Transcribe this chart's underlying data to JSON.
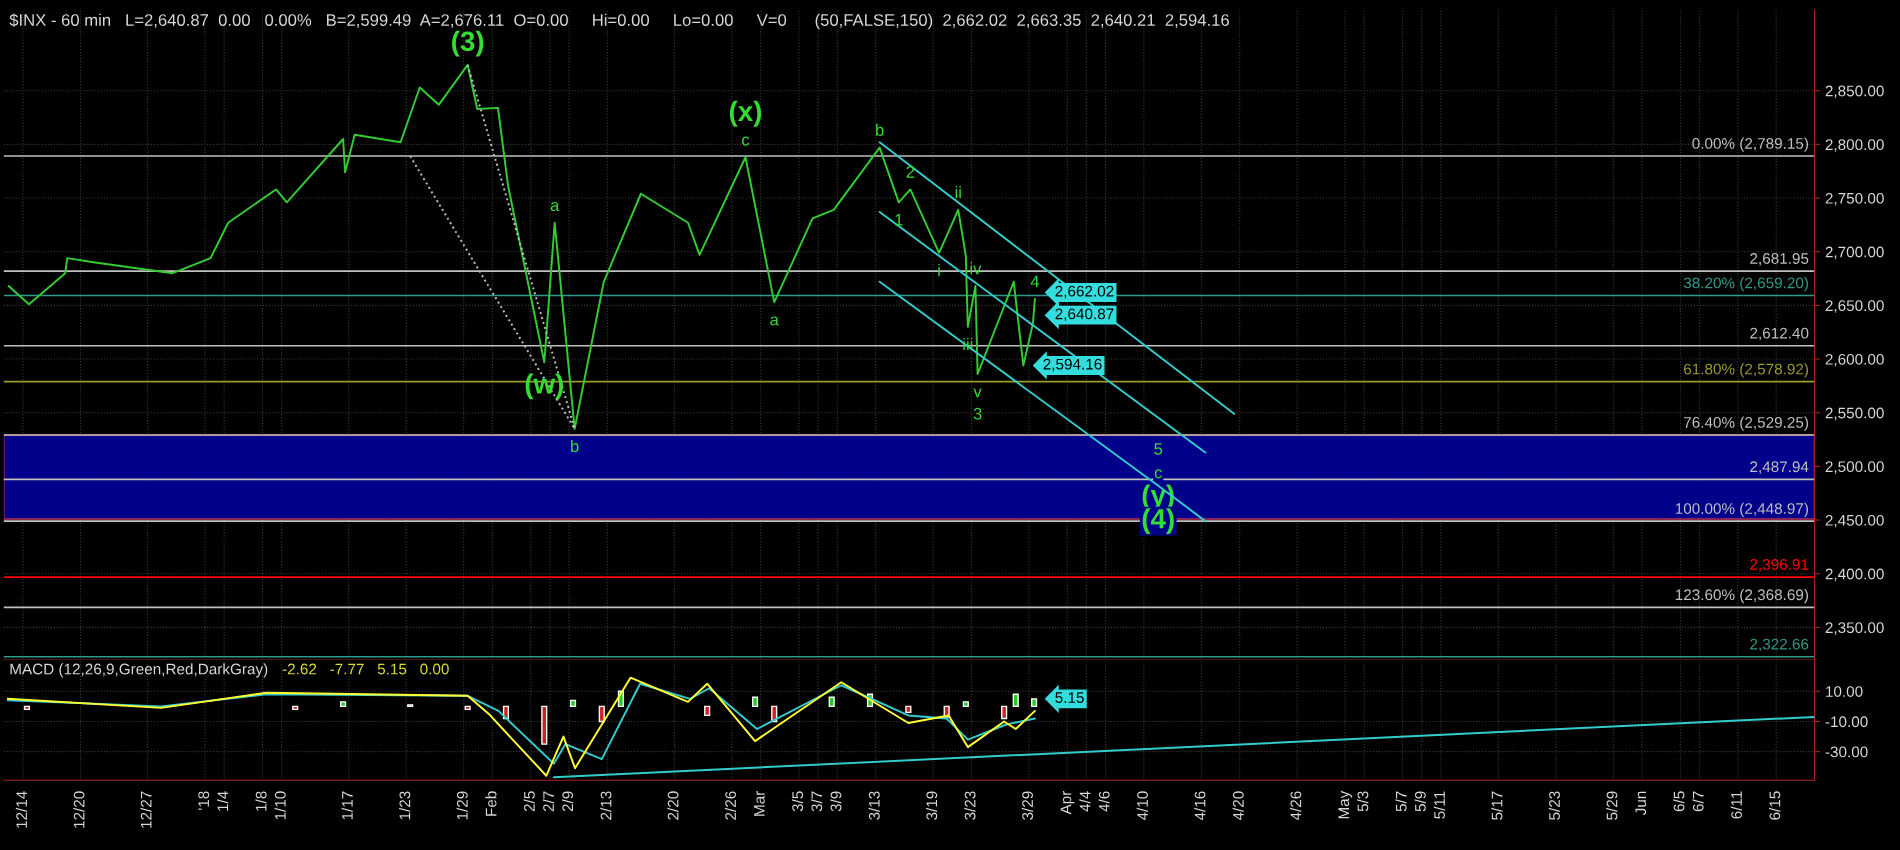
{
  "chart_data": [
    {
      "type": "line",
      "ylim": [
        2320,
        2925
      ],
      "xlim": [
        "2017-12-12",
        "2018-06-19"
      ],
      "tick_labels": "y",
      "grid": true,
      "legend": false,
      "yticks": [
        {
          "value": 2350,
          "label": "2,350.00"
        },
        {
          "value": 2400,
          "label": "2,400.00"
        },
        {
          "value": 2450,
          "label": "2,450.00"
        },
        {
          "value": 2500,
          "label": "2,500.00"
        },
        {
          "value": 2550,
          "label": "2,550.00"
        },
        {
          "value": 2600,
          "label": "2,600.00"
        },
        {
          "value": 2650,
          "label": "2,650.00"
        },
        {
          "value": 2700,
          "label": "2,700.00"
        },
        {
          "value": 2750,
          "label": "2,750.00"
        },
        {
          "value": 2800,
          "label": "2,800.00"
        },
        {
          "value": 2850,
          "label": "2,850.00"
        }
      ],
      "xticks": [
        {
          "value": "2017-12-14",
          "label": null
        },
        {
          "value": "2017-12-20",
          "label": null
        },
        {
          "value": "2017-12-27",
          "label": null
        },
        {
          "value": "2018-01-02",
          "label": null
        },
        {
          "value": "2018-01-04",
          "label": null
        },
        {
          "value": "2018-01-08",
          "label": null
        },
        {
          "value": "2018-01-10",
          "label": null
        },
        {
          "value": "2018-01-17",
          "label": null
        },
        {
          "value": "2018-01-23",
          "label": null
        },
        {
          "value": "2018-01-29",
          "label": null
        },
        {
          "value": "2018-02-01",
          "label": null
        },
        {
          "value": "2018-02-05",
          "label": null
        },
        {
          "value": "2018-02-07",
          "label": null
        },
        {
          "value": "2018-02-09",
          "label": null
        },
        {
          "value": "2018-02-13",
          "label": null
        },
        {
          "value": "2018-02-20",
          "label": null
        },
        {
          "value": "2018-02-26",
          "label": null
        },
        {
          "value": "2018-03-01",
          "label": null
        },
        {
          "value": "2018-03-05",
          "label": null
        },
        {
          "value": "2018-03-07",
          "label": null
        },
        {
          "value": "2018-03-09",
          "label": null
        },
        {
          "value": "2018-03-13",
          "label": null
        },
        {
          "value": "2018-03-19",
          "label": null
        },
        {
          "value": "2018-03-23",
          "label": null
        },
        {
          "value": "2018-03-29",
          "label": null
        },
        {
          "value": "2018-04-02",
          "label": null
        },
        {
          "value": "2018-04-04",
          "label": null
        },
        {
          "value": "2018-04-06",
          "label": null
        },
        {
          "value": "2018-04-10",
          "label": null
        },
        {
          "value": "2018-04-16",
          "label": null
        },
        {
          "value": "2018-04-20",
          "label": null
        },
        {
          "value": "2018-04-26",
          "label": null
        },
        {
          "value": "2018-05-01",
          "label": null
        },
        {
          "value": "2018-05-03",
          "label": null
        },
        {
          "value": "2018-05-07",
          "label": null
        },
        {
          "value": "2018-05-09",
          "label": null
        },
        {
          "value": "2018-05-11",
          "label": null
        },
        {
          "value": "2018-05-17",
          "label": null
        },
        {
          "value": "2018-05-23",
          "label": null
        },
        {
          "value": "2018-05-29",
          "label": null
        },
        {
          "value": "2018-06-01",
          "label": null
        },
        {
          "value": "2018-06-05",
          "label": null
        },
        {
          "value": "2018-06-07",
          "label": null
        },
        {
          "value": "2018-06-11",
          "label": null
        },
        {
          "value": "2018-06-15",
          "label": null
        }
      ],
      "series": [
        {
          "color": "#33cc33",
          "line_style": "solid",
          "x": [
            "2017-12-12T12:00",
            "2017-12-14T15:00",
            "2017-12-18T10:00",
            "2017-12-18T15:00",
            "2017-12-21T13:00",
            "2017-12-29T15:00",
            "2018-01-02T14:00",
            "2018-01-04T10:00",
            "2018-01-09T10:00",
            "2018-01-10T13:00",
            "2018-01-16T10:00",
            "2018-01-16T15:00",
            "2018-01-17T15:00",
            "2018-01-22T10:00",
            "2018-01-24T10:00",
            "2018-01-26T10:00",
            "2018-01-29T10:00",
            "2018-01-30T10:00",
            "2018-02-01T14:00",
            "2018-02-02T15:00",
            "2018-02-06T10:00",
            "2018-02-07T12:00",
            "2018-02-09T14:00",
            "2018-02-12T15:00",
            "2018-02-16T12:00",
            "2018-02-21T10:00",
            "2018-02-22T15:00",
            "2018-02-27T10:00",
            "2018-03-02T10:00",
            "2018-03-06T10:00",
            "2018-03-08T15:00",
            "2018-03-13T10:00",
            "2018-03-15T10:00",
            "2018-03-16T15:00",
            "2018-03-19T15:00",
            "2018-03-21T15:00",
            "2018-03-22T10:00",
            "2018-03-22T15:00",
            "2018-03-23T10:00",
            "2018-03-23T15:30",
            "2018-03-27T10:00",
            "2018-03-28T10:00",
            "2018-03-29T10:00",
            "2018-03-29T15:00"
          ],
          "values": [
            2668,
            2651,
            2680,
            2694,
            2690,
            2680,
            2694,
            2727,
            2758,
            2746,
            2805,
            2774,
            2809,
            2802,
            2853,
            2837,
            2874,
            2833,
            2834,
            2762,
            2597,
            2727,
            2535,
            2672,
            2754,
            2727,
            2697,
            2788,
            2653,
            2731,
            2739,
            2797,
            2746,
            2758,
            2699,
            2739,
            2696,
            2630,
            2668,
            2586,
            2672,
            2594,
            2633,
            2656
          ]
        },
        {
          "color": "#c0c0c0",
          "line_style": "dotted",
          "x": [
            "2018-01-29T10:00",
            "2018-02-09T14:00"
          ],
          "values": [
            2874,
            2535
          ]
        },
        {
          "color": "#c0c0c0",
          "line_style": "dotted",
          "x": [
            "2018-01-23T10:00",
            "2018-02-09T14:00"
          ],
          "values": [
            2789,
            2535
          ]
        },
        {
          "color": "#33cccc",
          "line_style": "solid",
          "x": [
            "2018-03-13T10:00",
            "2018-04-19T10:00"
          ],
          "values": [
            2802,
            2549
          ]
        },
        {
          "color": "#33cccc",
          "line_style": "solid",
          "x": [
            "2018-03-13T10:00",
            "2018-04-16T10:00"
          ],
          "values": [
            2737,
            2513
          ]
        },
        {
          "color": "#33cccc",
          "line_style": "solid",
          "x": [
            "2018-03-13T10:00",
            "2018-04-11T12:00",
            "2018-04-16T10:00"
          ],
          "values": [
            2672,
            2482,
            2449
          ]
        }
      ],
      "ref_lines": [
        {
          "axis": "y",
          "value": 2789.15,
          "label": "0.00% (2,789.15)",
          "color": "#c0c0c0"
        },
        {
          "axis": "y",
          "value": 2681.95,
          "label": "2,681.95",
          "color": "#c0c0c0"
        },
        {
          "axis": "y",
          "value": 2659.2,
          "label": "38.20% (2,659.20)",
          "color": "#2e9a8a"
        },
        {
          "axis": "y",
          "value": 2612.4,
          "label": "2,612.40",
          "color": "#c0c0c0"
        },
        {
          "axis": "y",
          "value": 2578.92,
          "label": "61.80% (2,578.92)",
          "color": "#9a9a2e"
        },
        {
          "axis": "y",
          "value": 2529.25,
          "label": "76.40% (2,529.25)",
          "color": "#c0c0c0"
        },
        {
          "axis": "y",
          "value": 2487.94,
          "label": "2,487.94",
          "color": "#c0c0c0"
        },
        {
          "axis": "y",
          "value": 2448.97,
          "label": "100.00% (2,448.97)",
          "color": "#c0c0c0"
        },
        {
          "axis": "y",
          "value": 2396.91,
          "label": "2,396.91",
          "color": "#ff0000"
        },
        {
          "axis": "y",
          "value": 2368.69,
          "label": "123.60% (2,368.69)",
          "color": "#c0c0c0"
        },
        {
          "axis": "y",
          "value": 2322.66,
          "label": "2,322.66",
          "color": "#2e9a8a"
        }
      ],
      "bands": [
        {
          "axis": "y",
          "from": 2451,
          "to": 2529,
          "color": "#000099"
        }
      ],
      "annotations": [
        "$INX - 60 min   L=2,640.87  0.00   0.00%   B=2,599.49  A=2,676.11  O=0.00     Hi=0.00     Lo=0.00     V=0      (50,FALSE,150)  2,662.02  2,663.35  2,640.21  2,594.16",
        {
          "text": "(3)",
          "x": "2018-01-29T10:00",
          "y": 2874
        },
        {
          "text": "(w)",
          "x": "2018-02-06T10:00",
          "y": 2597
        },
        {
          "text": "a",
          "x": "2018-02-07T12:00",
          "y": 2727
        },
        {
          "text": "b",
          "x": "2018-02-09T14:00",
          "y": 2535
        },
        {
          "text": "c",
          "x": "2018-02-27T10:00",
          "y": 2788
        },
        {
          "text": "(x)",
          "x": "2018-02-27T10:00",
          "y": 2788
        },
        {
          "text": "a",
          "x": "2018-03-02T10:00",
          "y": 2653
        },
        {
          "text": "b",
          "x": "2018-03-13T10:00",
          "y": 2797
        },
        {
          "text": "1",
          "x": "2018-03-15T10:00",
          "y": 2746
        },
        {
          "text": "2",
          "x": "2018-03-16T15:00",
          "y": 2758
        },
        {
          "text": "i",
          "x": "2018-03-19T15:00",
          "y": 2699
        },
        {
          "text": "ii",
          "x": "2018-03-21T15:00",
          "y": 2739
        },
        {
          "text": "iii",
          "x": "2018-03-22T15:00",
          "y": 2630
        },
        {
          "text": "iv",
          "x": "2018-03-23T10:00",
          "y": 2668
        },
        {
          "text": "v",
          "x": "2018-03-23T15:30",
          "y": 2586
        },
        {
          "text": "3",
          "x": "2018-03-23T15:30",
          "y": 2586
        },
        {
          "text": "4",
          "x": "2018-03-29T15:00",
          "y": 2656
        },
        {
          "text": "5",
          "x": "2018-04-11T12:00",
          "y": 2482
        },
        {
          "text": "c",
          "x": "2018-04-11T12:00",
          "y": 2482
        },
        {
          "text": "(y)",
          "x": "2018-04-11T12:00",
          "y": 2482
        },
        {
          "text": "(4)",
          "x": "2018-04-11T12:00",
          "y": 2482
        },
        {
          "text": "2,662.02",
          "x": "2018-03-29T16:00",
          "y": 2662.02
        },
        {
          "text": "2,640.87",
          "x": "2018-03-29T16:00",
          "y": 2640.87
        },
        {
          "text": "2,594.16",
          "x": "2018-03-28T10:00",
          "y": 2594
        }
      ]
    },
    {
      "type": "line",
      "title": "MACD (12,26,9,Green,Red,DarkGray)",
      "ylim": [
        -49,
        31
      ],
      "xlim": [
        "2017-12-12",
        "2018-06-19"
      ],
      "grid": true,
      "legend": false,
      "yticks": [
        {
          "value": 10,
          "label": "10.00"
        },
        {
          "value": -10,
          "label": "-10.00"
        },
        {
          "value": -30,
          "label": "-30.00"
        }
      ],
      "xticks": [
        {
          "value": "2017-12-14",
          "label": "12/14"
        },
        {
          "value": "2017-12-20",
          "label": "12/20"
        },
        {
          "value": "2017-12-27",
          "label": "12/27"
        },
        {
          "value": "2018-01-02",
          "label": "'18"
        },
        {
          "value": "2018-01-04",
          "label": "1/4"
        },
        {
          "value": "2018-01-08",
          "label": "1/8"
        },
        {
          "value": "2018-01-10",
          "label": "1/10"
        },
        {
          "value": "2018-01-17",
          "label": "1/17"
        },
        {
          "value": "2018-01-23",
          "label": "1/23"
        },
        {
          "value": "2018-01-29",
          "label": "1/29"
        },
        {
          "value": "2018-02-01",
          "label": "Feb"
        },
        {
          "value": "2018-02-05",
          "label": "2/5"
        },
        {
          "value": "2018-02-07",
          "label": "2/7"
        },
        {
          "value": "2018-02-09",
          "label": "2/9"
        },
        {
          "value": "2018-02-13",
          "label": "2/13"
        },
        {
          "value": "2018-02-20",
          "label": "2/20"
        },
        {
          "value": "2018-02-26",
          "label": "2/26"
        },
        {
          "value": "2018-03-01",
          "label": "Mar"
        },
        {
          "value": "2018-03-05",
          "label": "3/5"
        },
        {
          "value": "2018-03-07",
          "label": "3/7"
        },
        {
          "value": "2018-03-09",
          "label": "3/9"
        },
        {
          "value": "2018-03-13",
          "label": "3/13"
        },
        {
          "value": "2018-03-19",
          "label": "3/19"
        },
        {
          "value": "2018-03-23",
          "label": "3/23"
        },
        {
          "value": "2018-03-29",
          "label": "3/29"
        },
        {
          "value": "2018-04-02",
          "label": "Apr"
        },
        {
          "value": "2018-04-04",
          "label": "4/4"
        },
        {
          "value": "2018-04-06",
          "label": "4/6"
        },
        {
          "value": "2018-04-10",
          "label": "4/10"
        },
        {
          "value": "2018-04-16",
          "label": "4/16"
        },
        {
          "value": "2018-04-20",
          "label": "4/20"
        },
        {
          "value": "2018-04-26",
          "label": "4/26"
        },
        {
          "value": "2018-05-01",
          "label": "May"
        },
        {
          "value": "2018-05-03",
          "label": "5/3"
        },
        {
          "value": "2018-05-07",
          "label": "5/7"
        },
        {
          "value": "2018-05-09",
          "label": "5/9"
        },
        {
          "value": "2018-05-11",
          "label": "5/11"
        },
        {
          "value": "2018-05-17",
          "label": "5/17"
        },
        {
          "value": "2018-05-23",
          "label": "5/23"
        },
        {
          "value": "2018-05-29",
          "label": "5/29"
        },
        {
          "value": "2018-06-01",
          "label": "Jun"
        },
        {
          "value": "2018-06-05",
          "label": "6/5"
        },
        {
          "value": "2018-06-07",
          "label": "6/7"
        },
        {
          "value": "2018-06-11",
          "label": "6/11"
        },
        {
          "value": "2018-06-15",
          "label": "6/15"
        }
      ],
      "series": [
        {
          "type": "bar",
          "x": [
            "2017-12-14T10:00",
            "2018-01-11T10:00",
            "2018-01-16T10:00",
            "2018-01-23T10:00",
            "2018-01-29T10:00",
            "2018-02-02T10:00",
            "2018-02-06T10:00",
            "2018-02-09T10:00",
            "2018-02-12T10:00",
            "2018-02-14T10:00",
            "2018-02-23T10:00",
            "2018-02-28T10:00",
            "2018-03-02T10:00",
            "2018-03-08T10:00",
            "2018-03-12T10:00",
            "2018-03-16T10:00",
            "2018-03-20T10:00",
            "2018-03-22T10:00",
            "2018-03-26T10:00",
            "2018-03-27T15:00",
            "2018-03-29T13:00"
          ],
          "values": [
            -2,
            -2,
            3,
            1,
            -2,
            -8,
            -25,
            4,
            -10,
            10,
            -6,
            6,
            -10,
            6,
            8,
            -4,
            -7,
            3,
            -8,
            8,
            5
          ],
          "colors": [
            "#cc2222",
            "#cc2222",
            "#22cc22",
            "#22cc22",
            "#cc2222",
            "#cc2222",
            "#cc2222",
            "#22cc22",
            "#cc2222",
            "#22cc22",
            "#cc2222",
            "#22cc22",
            "#cc2222",
            "#22cc22",
            "#22cc22",
            "#cc2222",
            "#cc2222",
            "#22cc22",
            "#cc2222",
            "#22cc22",
            "#22cc22"
          ]
        },
        {
          "color": "#33cccc",
          "line_style": "solid",
          "x": [
            "2017-12-12T10:00",
            "2017-12-28T10:00",
            "2018-01-08T10:00",
            "2018-01-29T10:00",
            "2018-02-01T15:00",
            "2018-02-07T10:00",
            "2018-02-08T15:00",
            "2018-02-12T10:00",
            "2018-02-16T10:00",
            "2018-02-21T15:00",
            "2018-02-23T15:00",
            "2018-02-28T15:00",
            "2018-03-09T10:00",
            "2018-03-16T10:00",
            "2018-03-20T10:00",
            "2018-03-22T15:00",
            "2018-03-26T15:00",
            "2018-03-29T15:00"
          ],
          "values": [
            4,
            0,
            8,
            7,
            -3,
            -38,
            -25,
            -35,
            15,
            5,
            12,
            -15,
            14,
            -6,
            -8,
            -22,
            -12,
            -8
          ]
        },
        {
          "color": "#ffff33",
          "line_style": "solid",
          "x": [
            "2017-12-12T10:00",
            "2017-12-28T10:00",
            "2018-01-08T10:00",
            "2018-01-29T10:00",
            "2018-01-31T15:00",
            "2018-02-06T15:00",
            "2018-02-08T10:00",
            "2018-02-09T15:00",
            "2018-02-15T10:00",
            "2018-02-21T10:00",
            "2018-02-23T10:00",
            "2018-02-28T10:00",
            "2018-03-09T10:00",
            "2018-03-16T10:00",
            "2018-03-20T15:00",
            "2018-03-22T15:00",
            "2018-03-26T10:00",
            "2018-03-27T15:00",
            "2018-03-29T15:00"
          ],
          "values": [
            5,
            -1,
            9,
            7,
            -5,
            -46,
            -20,
            -41,
            19,
            3,
            15,
            -23,
            16,
            -11,
            -6,
            -27,
            -10,
            -15,
            -3
          ]
        },
        {
          "color": "#33cccc",
          "line_style": "solid",
          "x": [
            "2018-02-07T10:00",
            "2018-06-19"
          ],
          "values": [
            -47,
            -7
          ]
        }
      ],
      "annotations": [
        "-2.62   -7.77   5.15   0.00",
        {
          "text": "5.15",
          "x": "2018-03-29T16:00",
          "y": 5
        }
      ]
    }
  ]
}
